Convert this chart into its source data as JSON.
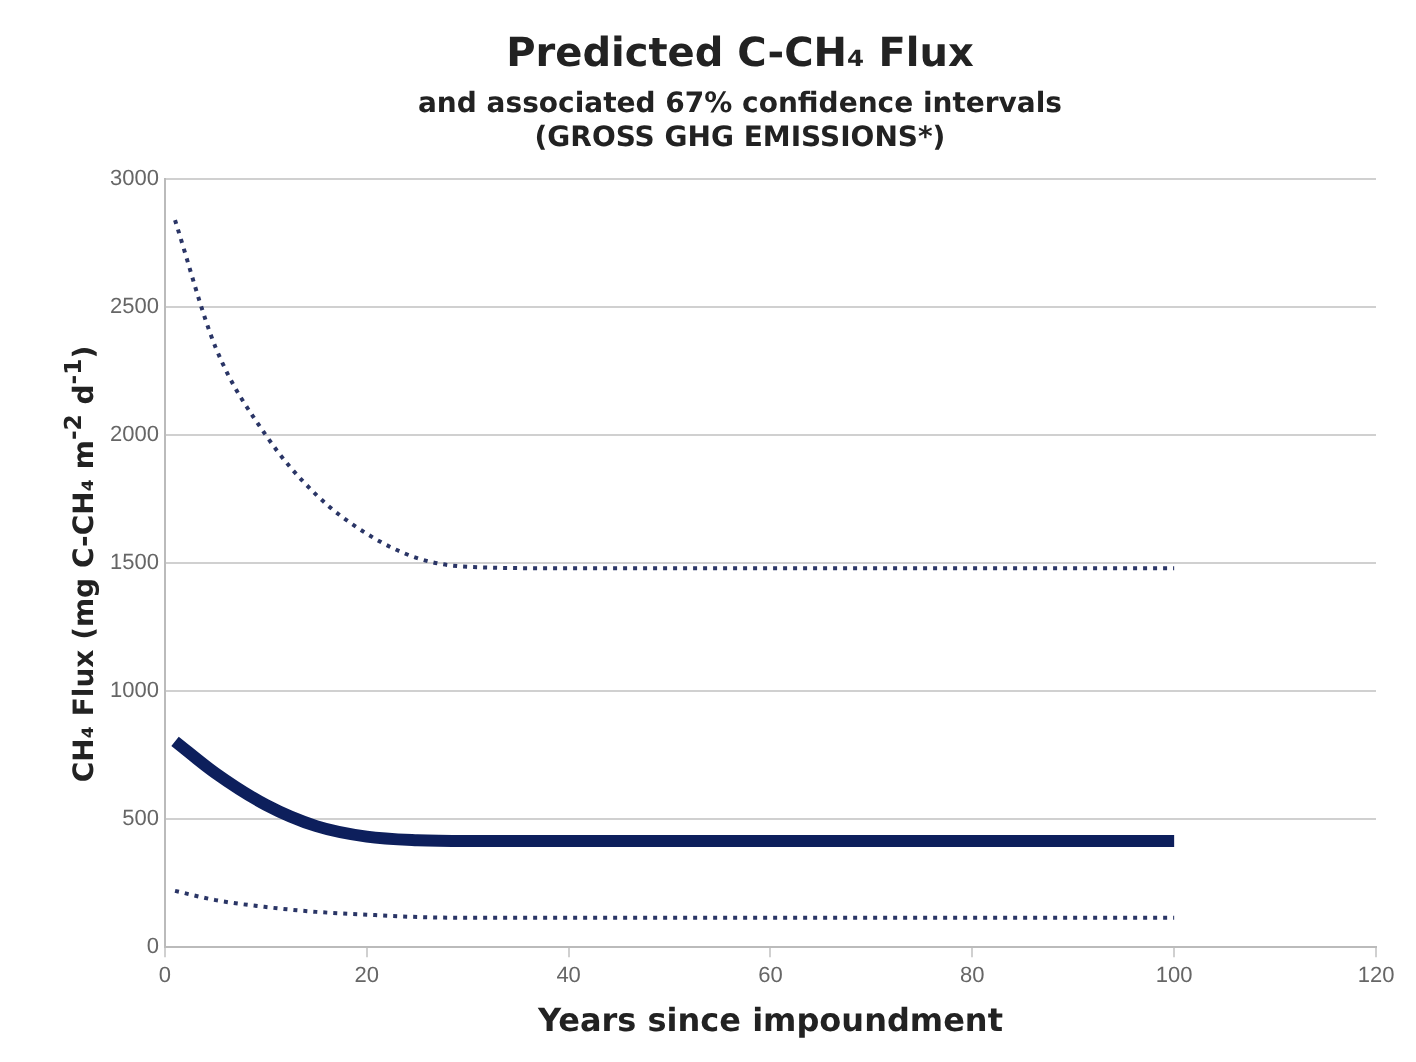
{
  "chart_data": {
    "type": "line",
    "title": "Predicted C-CH₄ Flux",
    "subtitle": "and associated 67% confidence intervals\n(GROSS GHG EMISSIONS*)",
    "xlabel": "Years since impoundment",
    "ylabel": "CH₄ Flux (mg C-CH₄ m$^{-2}$ d$^{-1}$)",
    "xlim": [
      0,
      120
    ],
    "xticks": [
      0,
      20,
      40,
      60,
      80,
      100,
      120
    ],
    "ylim": [
      0,
      3000
    ],
    "yticks": [
      0,
      500,
      1000,
      1500,
      2000,
      2500,
      3000
    ],
    "grid": "y",
    "legend": false,
    "marker": "none",
    "series": [
      {
        "color": "#2a3566",
        "line_style": "dotted",
        "x": [
          1,
          5,
          10,
          15,
          20,
          25,
          30,
          40,
          60,
          80,
          100
        ],
        "values": [
          2840,
          2345,
          2000,
          1767,
          1615,
          1520,
          1486,
          1480,
          1480,
          1480,
          1480
        ]
      },
      {
        "color": "#0d1f5c",
        "line_style": "solid",
        "x": [
          1,
          5,
          10,
          15,
          20,
          25,
          30,
          40,
          60,
          80,
          100
        ],
        "values": [
          804,
          680,
          556,
          473,
          432,
          418,
          415,
          415,
          415,
          415,
          415
        ]
      },
      {
        "color": "#2a3566",
        "line_style": "dotted",
        "x": [
          1,
          5,
          10,
          15,
          20,
          25,
          30,
          40,
          60,
          80,
          100
        ],
        "values": [
          220,
          184,
          157,
          138,
          127,
          118,
          115,
          115,
          115,
          115,
          115
        ]
      }
    ]
  }
}
